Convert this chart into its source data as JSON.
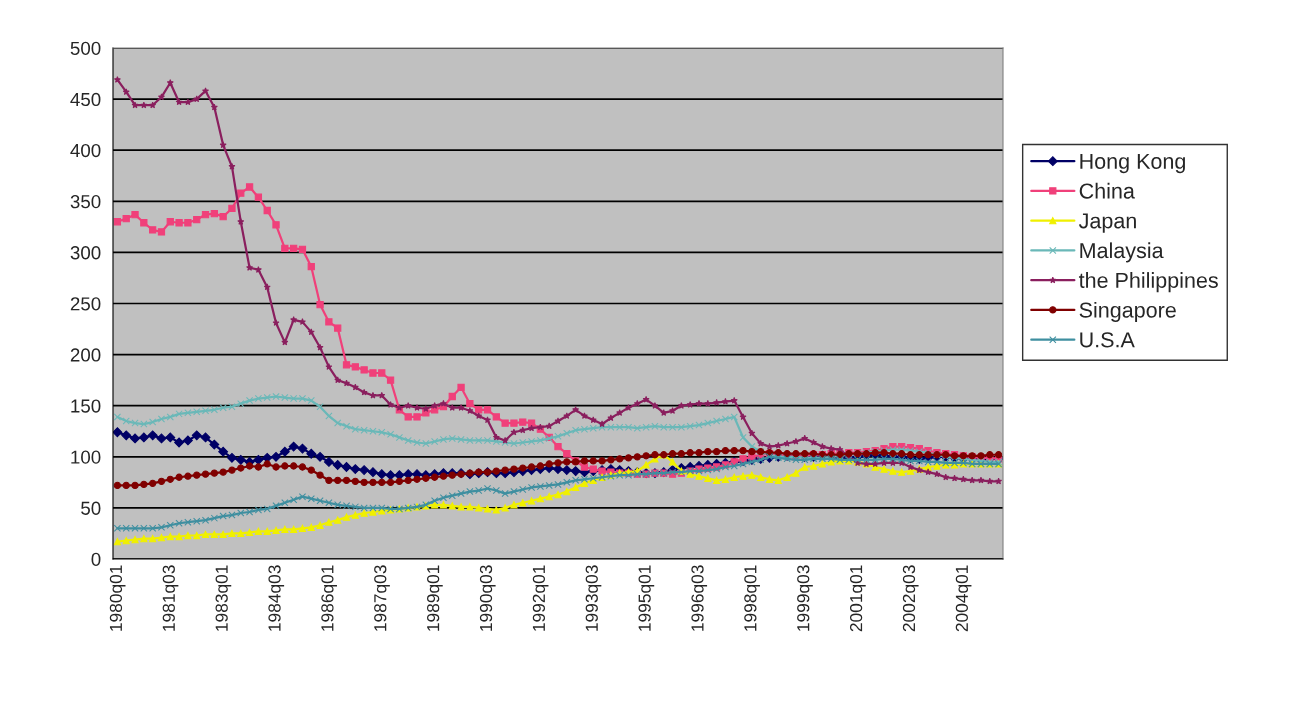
{
  "chart_data": {
    "type": "line",
    "categories": [
      "1980q01",
      null,
      null,
      null,
      null,
      null,
      "1981q03",
      null,
      null,
      null,
      null,
      null,
      "1983q01",
      null,
      null,
      null,
      null,
      null,
      "1984q03",
      null,
      null,
      null,
      null,
      null,
      "1986q01",
      null,
      null,
      null,
      null,
      null,
      "1987q03",
      null,
      null,
      null,
      null,
      null,
      "1989q01",
      null,
      null,
      null,
      null,
      null,
      "1990q03",
      null,
      null,
      null,
      null,
      null,
      "1992q01",
      null,
      null,
      null,
      null,
      null,
      "1993q03",
      null,
      null,
      null,
      null,
      null,
      "1995q01",
      null,
      null,
      null,
      null,
      null,
      "1996q03",
      null,
      null,
      null,
      null,
      null,
      "1998q01",
      null,
      null,
      null,
      null,
      null,
      "1999q03",
      null,
      null,
      null,
      null,
      null,
      "2001q01",
      null,
      null,
      null,
      null,
      null,
      "2002q03",
      null,
      null,
      null,
      null,
      null,
      "2004q01",
      null,
      null,
      null,
      null
    ],
    "series": [
      {
        "name": "Hong Kong",
        "color": "#000066",
        "marker": "diamond",
        "values": [
          124,
          121,
          118,
          119,
          121,
          118,
          119,
          114,
          116,
          121,
          119,
          112,
          105,
          99,
          97,
          95,
          97,
          99,
          100,
          105,
          110,
          108,
          103,
          100,
          95,
          92,
          90,
          88,
          87,
          85,
          83,
          82,
          82,
          83,
          83,
          82,
          83,
          84,
          84,
          84,
          83,
          84,
          85,
          84,
          84,
          85,
          86,
          87,
          88,
          89,
          88,
          87,
          86,
          85,
          86,
          87,
          88,
          87,
          86,
          85,
          84,
          84,
          85,
          87,
          89,
          90,
          91,
          92,
          93,
          94,
          95,
          96,
          97,
          98,
          99,
          100,
          101,
          101,
          100,
          100,
          101,
          100,
          99,
          99,
          100,
          101,
          102,
          101,
          100,
          100,
          99,
          98,
          99,
          100,
          100,
          99,
          98,
          98,
          97,
          98,
          98
        ]
      },
      {
        "name": "China",
        "color": "#f0407a",
        "marker": "square",
        "values": [
          330,
          333,
          337,
          329,
          322,
          320,
          330,
          329,
          329,
          332,
          337,
          338,
          335,
          343,
          358,
          364,
          354,
          341,
          327,
          304,
          304,
          303,
          286,
          249,
          232,
          226,
          190,
          188,
          185,
          182,
          182,
          175,
          146,
          139,
          139,
          143,
          146,
          149,
          159,
          168,
          152,
          146,
          146,
          139,
          133,
          133,
          134,
          133,
          127,
          119,
          110,
          103,
          96,
          90,
          88,
          86,
          85,
          84,
          84,
          83,
          83,
          84,
          84,
          83,
          84,
          86,
          88,
          89,
          90,
          92,
          95,
          98,
          100,
          102,
          103,
          102,
          101,
          100,
          101,
          102,
          102,
          103,
          103,
          104,
          104,
          105,
          106,
          108,
          110,
          110,
          109,
          108,
          106,
          104,
          103,
          102,
          101,
          100,
          99,
          99,
          98
        ]
      },
      {
        "name": "Japan",
        "color": "#f0f000",
        "marker": "triangle",
        "values": [
          17,
          18,
          19,
          20,
          20,
          21,
          22,
          22,
          23,
          23,
          24,
          24,
          24,
          25,
          25,
          26,
          27,
          27,
          28,
          29,
          29,
          30,
          31,
          33,
          36,
          38,
          41,
          43,
          45,
          46,
          47,
          48,
          49,
          50,
          51,
          52,
          53,
          53,
          52,
          51,
          51,
          50,
          49,
          48,
          50,
          53,
          55,
          57,
          59,
          61,
          63,
          66,
          70,
          74,
          77,
          80,
          82,
          84,
          85,
          86,
          92,
          98,
          102,
          95,
          86,
          83,
          81,
          79,
          77,
          78,
          80,
          81,
          82,
          80,
          78,
          77,
          80,
          84,
          90,
          91,
          93,
          95,
          96,
          96,
          95,
          93,
          90,
          88,
          86,
          85,
          86,
          88,
          90,
          91,
          92,
          92,
          93,
          93,
          93,
          93,
          93
        ]
      },
      {
        "name": "Malaysia",
        "color": "#6ab8b8",
        "marker": "cross",
        "values": [
          139,
          135,
          133,
          132,
          134,
          137,
          139,
          142,
          143,
          144,
          145,
          146,
          148,
          149,
          152,
          155,
          157,
          158,
          159,
          158,
          157,
          157,
          155,
          149,
          140,
          133,
          130,
          127,
          126,
          125,
          124,
          122,
          119,
          116,
          114,
          113,
          115,
          117,
          118,
          117,
          116,
          116,
          116,
          115,
          114,
          113,
          114,
          115,
          116,
          118,
          120,
          123,
          126,
          127,
          128,
          129,
          129,
          129,
          129,
          128,
          129,
          130,
          129,
          129,
          129,
          130,
          131,
          133,
          135,
          137,
          139,
          119,
          110,
          105,
          102,
          100,
          100,
          100,
          99,
          99,
          99,
          100,
          101,
          102,
          103,
          104,
          105,
          106,
          107,
          107,
          106,
          105,
          104,
          102,
          100,
          99,
          98,
          97,
          96,
          95,
          95
        ]
      },
      {
        "name": "the Philippines",
        "color": "#8a1f5e",
        "marker": "star",
        "values": [
          469,
          457,
          444,
          444,
          444,
          452,
          466,
          447,
          447,
          450,
          458,
          442,
          405,
          384,
          330,
          285,
          283,
          266,
          231,
          212,
          234,
          232,
          222,
          207,
          188,
          175,
          172,
          168,
          163,
          160,
          160,
          151,
          148,
          150,
          148,
          147,
          150,
          152,
          148,
          148,
          145,
          140,
          136,
          119,
          116,
          124,
          126,
          128,
          129,
          130,
          135,
          140,
          146,
          140,
          136,
          132,
          138,
          143,
          148,
          152,
          156,
          150,
          143,
          145,
          150,
          151,
          152,
          152,
          153,
          154,
          155,
          139,
          123,
          113,
          110,
          111,
          113,
          115,
          118,
          114,
          110,
          108,
          107,
          100,
          94,
          93,
          93,
          94,
          94,
          94,
          90,
          87,
          85,
          83,
          80,
          79,
          78,
          77,
          77,
          76,
          76
        ]
      },
      {
        "name": "Singapore",
        "color": "#800000",
        "marker": "circle",
        "values": [
          72,
          72,
          72,
          73,
          74,
          76,
          78,
          80,
          81,
          82,
          83,
          84,
          85,
          87,
          89,
          91,
          90,
          93,
          90,
          91,
          91,
          90,
          87,
          82,
          77,
          77,
          77,
          76,
          75,
          75,
          75,
          75,
          76,
          77,
          78,
          79,
          80,
          81,
          82,
          83,
          84,
          85,
          85,
          86,
          87,
          88,
          89,
          90,
          91,
          93,
          94,
          95,
          95,
          96,
          96,
          96,
          97,
          98,
          99,
          100,
          101,
          102,
          102,
          103,
          103,
          104,
          104,
          105,
          105,
          106,
          106,
          106,
          105,
          105,
          104,
          104,
          103,
          103,
          103,
          103,
          102,
          102,
          102,
          103,
          103,
          103,
          104,
          104,
          103,
          103,
          102,
          102,
          102,
          102,
          102,
          101,
          101,
          101,
          101,
          102,
          102
        ]
      },
      {
        "name": "U.S.A",
        "color": "#3f8fa0",
        "marker": "cross",
        "values": [
          30,
          30,
          30,
          30,
          30,
          31,
          33,
          35,
          36,
          37,
          38,
          40,
          42,
          43,
          45,
          46,
          48,
          49,
          52,
          55,
          58,
          61,
          59,
          57,
          55,
          53,
          52,
          51,
          50,
          50,
          50,
          49,
          49,
          50,
          51,
          53,
          57,
          60,
          62,
          64,
          66,
          67,
          69,
          67,
          64,
          66,
          68,
          70,
          71,
          72,
          73,
          75,
          77,
          78,
          79,
          80,
          81,
          82,
          82,
          83,
          83,
          84,
          84,
          85,
          85,
          86,
          86,
          87,
          88,
          90,
          91,
          93,
          95,
          97,
          100,
          99,
          98,
          97,
          97,
          98,
          98,
          98,
          97,
          97,
          97,
          97,
          97,
          98,
          98,
          97,
          96,
          96,
          95,
          95,
          94,
          94,
          94,
          93,
          93,
          93,
          93
        ]
      }
    ],
    "ylim": [
      0,
      500
    ],
    "yticks": [
      0,
      50,
      100,
      150,
      200,
      250,
      300,
      350,
      400,
      450,
      500
    ],
    "grid": "y",
    "legend": "right",
    "line_style": "solid"
  }
}
